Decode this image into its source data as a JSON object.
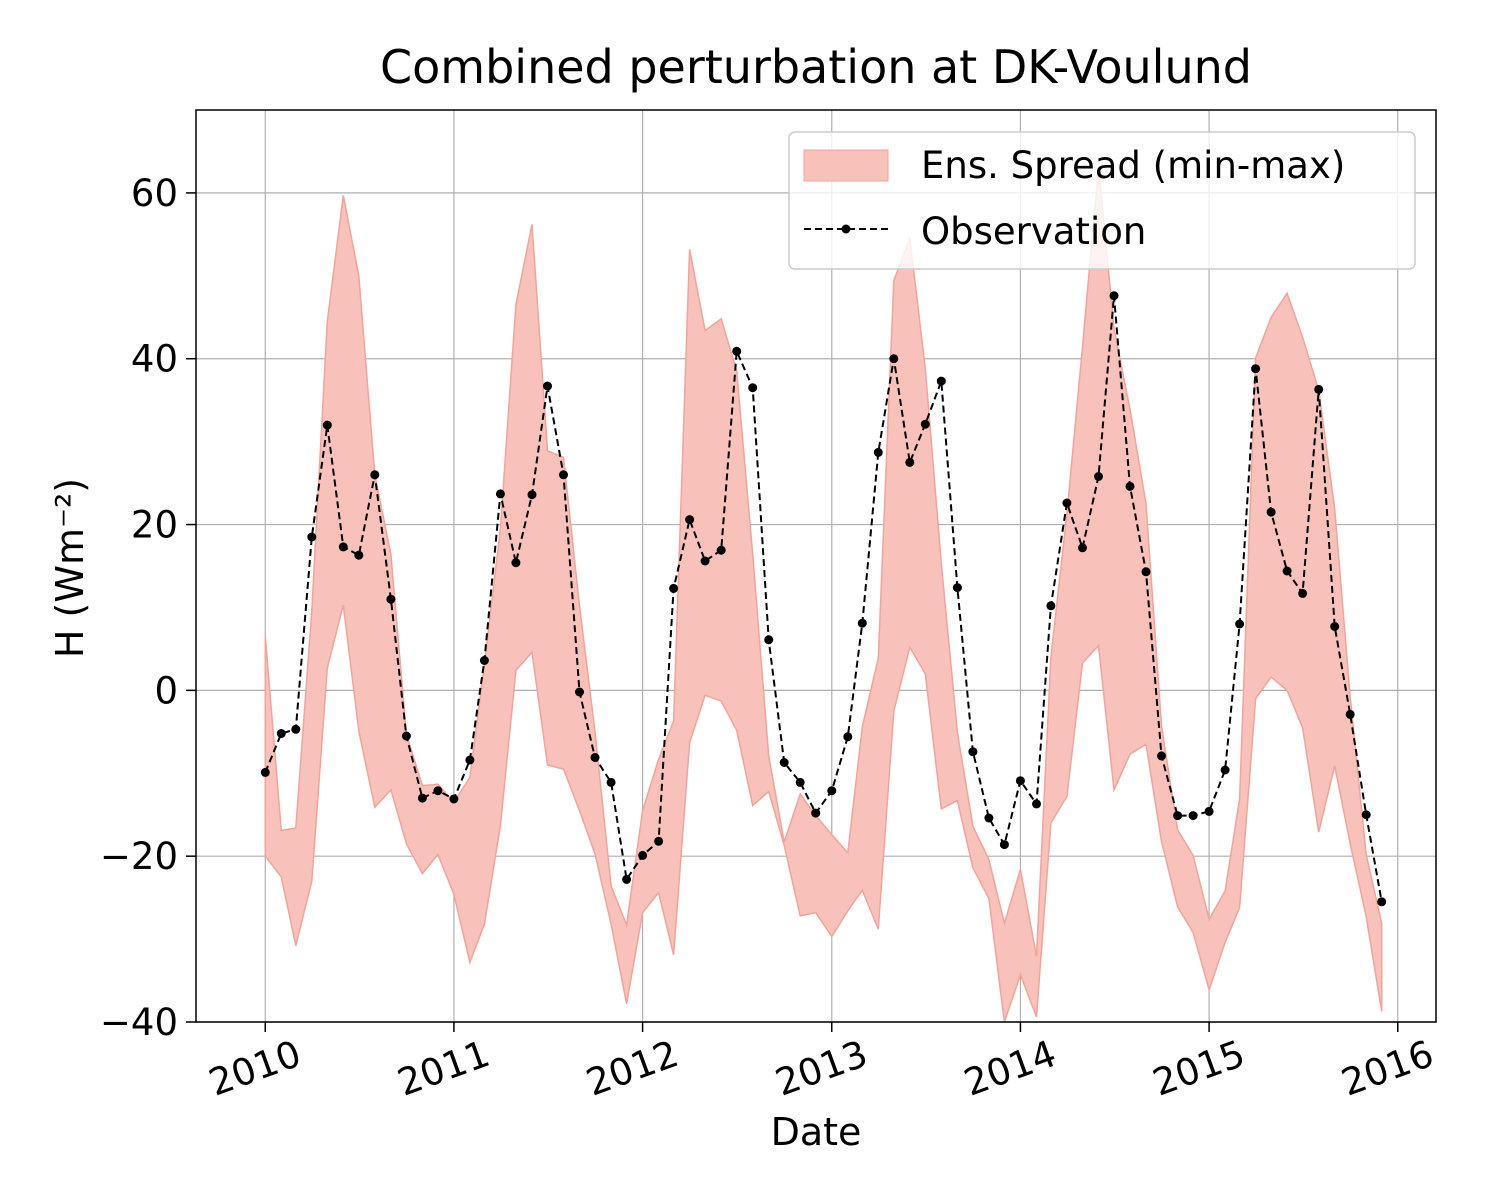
{
  "chart_data": {
    "type": "line",
    "title": "Combined perturbation at DK-Voulund",
    "xlabel": "Date",
    "ylabel": "H  (Wm⁻²)",
    "ylim": [
      -40,
      70
    ],
    "xlim": [
      "2009-08-20",
      "2016-03-15"
    ],
    "yticks": [
      -40,
      -20,
      0,
      20,
      40,
      60
    ],
    "ytick_labels": [
      "−40",
      "−20",
      "0",
      "20",
      "40",
      "60"
    ],
    "xticks": [
      "2010-01-01",
      "2011-01-01",
      "2012-01-01",
      "2013-01-01",
      "2014-01-01",
      "2015-01-01",
      "2016-01-01"
    ],
    "xtick_labels": [
      "2010",
      "2011",
      "2012",
      "2013",
      "2014",
      "2015",
      "2016"
    ],
    "grid": true,
    "legend_position": "top-right",
    "x": [
      "2010-01",
      "2010-02",
      "2010-03",
      "2010-04",
      "2010-05",
      "2010-06",
      "2010-07",
      "2010-08",
      "2010-09",
      "2010-10",
      "2010-11",
      "2010-12",
      "2011-01",
      "2011-02",
      "2011-03",
      "2011-04",
      "2011-05",
      "2011-06",
      "2011-07",
      "2011-08",
      "2011-09",
      "2011-10",
      "2011-11",
      "2011-12",
      "2012-01",
      "2012-02",
      "2012-03",
      "2012-04",
      "2012-05",
      "2012-06",
      "2012-07",
      "2012-08",
      "2012-09",
      "2012-10",
      "2012-11",
      "2012-12",
      "2013-01",
      "2013-02",
      "2013-03",
      "2013-04",
      "2013-05",
      "2013-06",
      "2013-07",
      "2013-08",
      "2013-09",
      "2013-10",
      "2013-11",
      "2013-12",
      "2014-01",
      "2014-02",
      "2014-03",
      "2014-04",
      "2014-05",
      "2014-06",
      "2014-07",
      "2014-08",
      "2014-09",
      "2014-10",
      "2014-11",
      "2014-12",
      "2015-01",
      "2015-02",
      "2015-03",
      "2015-04",
      "2015-05",
      "2015-06",
      "2015-07",
      "2015-08",
      "2015-09",
      "2015-10",
      "2015-11",
      "2015-12"
    ],
    "series": [
      {
        "name": "Ens. Spread (min-max)",
        "kind": "band",
        "color": "#f8c1ba",
        "edge_color": "#f2a49a",
        "min": [
          -20,
          -22.5,
          -30.8,
          -23,
          2.7,
          10.3,
          -4.9,
          -14.1,
          -12,
          -18.5,
          -22.1,
          -19.8,
          -24.6,
          -32.8,
          -28.2,
          -16.3,
          2.4,
          4.6,
          -9,
          -9.5,
          -14.5,
          -19.7,
          -28.2,
          -37.8,
          -26.8,
          -24.4,
          -31.9,
          -6.3,
          -0.6,
          -1.3,
          -4.8,
          -13.9,
          -12.2,
          -18.7,
          -27.2,
          -26.8,
          -29.7,
          -26.6,
          -24.1,
          -28.8,
          -2.5,
          5.2,
          2,
          -14.3,
          -13.3,
          -21.4,
          -25.1,
          -40,
          -34.3,
          -39.4,
          -16,
          -12.8,
          3.3,
          5.4,
          -12,
          -7.7,
          -6.5,
          -18.2,
          -26.1,
          -29.2,
          -36.1,
          -30.4,
          -26.2,
          -1,
          1.6,
          0,
          -4.5,
          -17.1,
          -9.1,
          -18.5,
          -27.3,
          -38.7
        ],
        "max": [
          6.5,
          -16.9,
          -16.6,
          9.6,
          44.5,
          59.7,
          50,
          26,
          16.4,
          -5.3,
          -11.5,
          -11.3,
          -13.5,
          -10.5,
          3.1,
          19.5,
          46.5,
          56.2,
          28.9,
          28.1,
          10.2,
          -5,
          -23.6,
          -28.3,
          -14.5,
          -8.3,
          -3.7,
          53.2,
          43.4,
          44.8,
          38.5,
          16.4,
          -7.9,
          -18.3,
          -12.5,
          -15.1,
          -17.4,
          -19.6,
          -4.4,
          3.9,
          49.4,
          54.6,
          38.8,
          15.3,
          -5.1,
          -16.4,
          -20.4,
          -28.1,
          -21.6,
          -32.1,
          4,
          21.3,
          41.4,
          63.2,
          43.7,
          33.9,
          22.5,
          -4.3,
          -16.8,
          -19.9,
          -27.6,
          -24.2,
          -13.1,
          40.1,
          45,
          47.9,
          42.6,
          36.2,
          21.9,
          -0.8,
          -19.8,
          -28.1
        ]
      },
      {
        "name": "Observation",
        "kind": "line",
        "color": "#000000",
        "values": [
          -9.9,
          -5.2,
          -4.7,
          18.5,
          32,
          17.3,
          16.3,
          26,
          11,
          -5.5,
          -13,
          -12.1,
          -13.1,
          -8.4,
          3.6,
          23.7,
          15.4,
          23.6,
          36.7,
          26,
          -0.2,
          -8.1,
          -11.1,
          -22.8,
          -19.9,
          -18.2,
          12.3,
          20.6,
          15.6,
          16.9,
          40.9,
          36.5,
          6.1,
          -8.7,
          -11.1,
          -14.8,
          -12.1,
          -5.6,
          8.1,
          28.7,
          40,
          27.5,
          32.1,
          37.3,
          12.4,
          -7.4,
          -15.4,
          -18.6,
          -10.9,
          -13.7,
          10.2,
          22.6,
          17.2,
          25.8,
          47.6,
          24.6,
          14.3,
          -7.9,
          -15.1,
          -15.1,
          -14.6,
          -9.6,
          8,
          38.8,
          21.5,
          14.4,
          11.7,
          36.3,
          7.7,
          -2.9,
          -15,
          -25.5
        ]
      }
    ]
  }
}
